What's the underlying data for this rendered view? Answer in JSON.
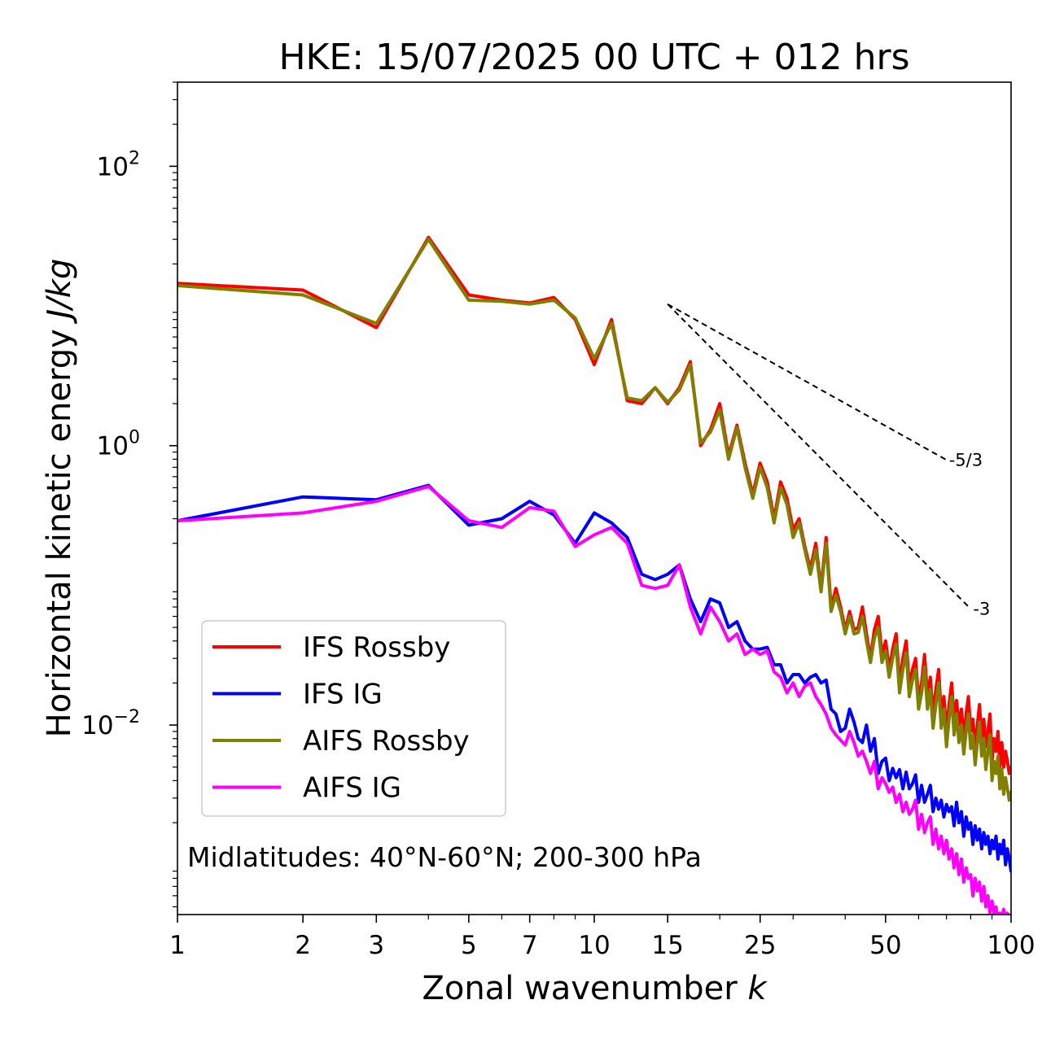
{
  "chart_data": {
    "type": "line",
    "title": "HKE: 15/07/2025 00 UTC + 012 hrs",
    "xlabel": "Zonal wavenumber",
    "xlabel_var": "k",
    "ylabel": "Horizontal kinetic energy",
    "ylabel_units": "J/kg",
    "xscale": "log",
    "yscale": "log",
    "xlim": [
      1,
      100
    ],
    "ylim": [
      0.00044,
      400
    ],
    "xticks": [
      {
        "value": 1,
        "label": "1"
      },
      {
        "value": 2,
        "label": "2"
      },
      {
        "value": 3,
        "label": "3"
      },
      {
        "value": 5,
        "label": "5"
      },
      {
        "value": 7,
        "label": "7"
      },
      {
        "value": 10,
        "label": "10"
      },
      {
        "value": 15,
        "label": "15"
      },
      {
        "value": 25,
        "label": "25"
      },
      {
        "value": 50,
        "label": "50"
      },
      {
        "value": 100,
        "label": "100"
      }
    ],
    "yticks": [
      {
        "exp": -2,
        "base": "10",
        "sup": "−2"
      },
      {
        "exp": 0,
        "base": "10",
        "sup": "0"
      },
      {
        "exp": 2,
        "base": "10",
        "sup": "2"
      }
    ],
    "annotation": "Midlatitudes: 40°N-60°N; 200-300 hPa",
    "legend_position": "lower-left",
    "colors": {
      "ifs_rossby": "#ff0000",
      "ifs_ig": "#0000ff",
      "aifs_rossby": "#808000",
      "aifs_ig": "#ff00ff",
      "reference": "#000000"
    },
    "reference_lines": [
      {
        "label": "-5/3",
        "slope": -1.6667,
        "x": [
          15,
          70
        ],
        "y_start": 10.3
      },
      {
        "label": "-3",
        "slope": -3,
        "x": [
          15,
          80
        ],
        "y_start": 10.3
      }
    ],
    "series": [
      {
        "name": "IFS Rossby",
        "color": "#ff0000",
        "x": [
          1,
          2,
          3,
          4,
          5,
          6,
          7,
          8,
          9,
          10,
          11,
          12,
          13,
          14,
          15,
          16,
          17,
          18,
          19,
          20,
          21,
          22,
          23,
          24,
          25,
          26,
          27,
          28,
          29,
          30,
          31,
          32,
          33,
          34,
          35,
          36,
          37,
          38,
          39,
          40,
          41,
          42,
          43,
          44,
          45,
          46,
          47,
          48,
          49,
          50,
          51,
          52,
          53,
          54,
          55,
          56,
          57,
          58,
          59,
          60,
          61,
          62,
          63,
          64,
          65,
          66,
          67,
          68,
          69,
          70,
          71,
          72,
          73,
          74,
          75,
          76,
          77,
          78,
          79,
          80,
          81,
          82,
          83,
          84,
          85,
          86,
          87,
          88,
          89,
          90,
          91,
          92,
          93,
          94,
          95,
          96,
          97,
          98,
          99,
          100
        ],
        "y": [
          14.5,
          13.0,
          7.0,
          31.0,
          12.0,
          11.0,
          10.5,
          11.5,
          8.0,
          3.8,
          8.0,
          2.1,
          2.0,
          2.6,
          2.0,
          2.6,
          4.0,
          1.0,
          1.3,
          2.0,
          0.85,
          1.4,
          0.75,
          0.45,
          0.75,
          0.55,
          0.3,
          0.55,
          0.42,
          0.25,
          0.3,
          0.19,
          0.13,
          0.2,
          0.095,
          0.22,
          0.07,
          0.095,
          0.07,
          0.048,
          0.065,
          0.048,
          0.05,
          0.07,
          0.045,
          0.03,
          0.048,
          0.06,
          0.032,
          0.04,
          0.025,
          0.035,
          0.045,
          0.02,
          0.03,
          0.04,
          0.019,
          0.025,
          0.03,
          0.015,
          0.02,
          0.032,
          0.016,
          0.022,
          0.012,
          0.018,
          0.025,
          0.012,
          0.016,
          0.009,
          0.014,
          0.02,
          0.011,
          0.015,
          0.01,
          0.013,
          0.008,
          0.012,
          0.016,
          0.009,
          0.011,
          0.007,
          0.01,
          0.014,
          0.008,
          0.011,
          0.007,
          0.009,
          0.012,
          0.0055,
          0.008,
          0.0065,
          0.009,
          0.005,
          0.0075,
          0.005,
          0.0065,
          0.0055,
          0.0045,
          0.005
        ]
      },
      {
        "name": "IFS IG",
        "color": "#0000ff",
        "x": [
          1,
          2,
          3,
          4,
          5,
          6,
          7,
          8,
          9,
          10,
          11,
          12,
          13,
          14,
          15,
          16,
          17,
          18,
          19,
          20,
          21,
          22,
          23,
          24,
          25,
          26,
          27,
          28,
          29,
          30,
          31,
          32,
          33,
          34,
          35,
          36,
          37,
          38,
          39,
          40,
          41,
          42,
          43,
          44,
          45,
          46,
          47,
          48,
          49,
          50,
          51,
          52,
          53,
          54,
          55,
          56,
          57,
          58,
          59,
          60,
          61,
          62,
          63,
          64,
          65,
          66,
          67,
          68,
          69,
          70,
          71,
          72,
          73,
          74,
          75,
          76,
          77,
          78,
          79,
          80,
          81,
          82,
          83,
          84,
          85,
          86,
          87,
          88,
          89,
          90,
          91,
          92,
          93,
          94,
          95,
          96,
          97,
          98,
          99,
          100
        ],
        "y": [
          0.29,
          0.43,
          0.41,
          0.52,
          0.27,
          0.3,
          0.4,
          0.32,
          0.2,
          0.33,
          0.28,
          0.22,
          0.12,
          0.11,
          0.12,
          0.14,
          0.08,
          0.055,
          0.08,
          0.075,
          0.05,
          0.055,
          0.04,
          0.035,
          0.035,
          0.036,
          0.027,
          0.027,
          0.02,
          0.023,
          0.023,
          0.02,
          0.022,
          0.023,
          0.02,
          0.021,
          0.013,
          0.012,
          0.009,
          0.0095,
          0.013,
          0.0105,
          0.008,
          0.0075,
          0.01,
          0.0065,
          0.008,
          0.0045,
          0.0055,
          0.0058,
          0.004,
          0.0049,
          0.0042,
          0.0048,
          0.0035,
          0.0046,
          0.0035,
          0.0038,
          0.0044,
          0.0028,
          0.0037,
          0.0028,
          0.0032,
          0.0037,
          0.0024,
          0.003,
          0.0025,
          0.0029,
          0.0022,
          0.0027,
          0.0024,
          0.0026,
          0.0019,
          0.0028,
          0.002,
          0.0024,
          0.0016,
          0.0022,
          0.0018,
          0.002,
          0.0014,
          0.0019,
          0.0015,
          0.0018,
          0.0013,
          0.0017,
          0.0014,
          0.0016,
          0.0012,
          0.0015,
          0.0013,
          0.0016,
          0.0011,
          0.0014,
          0.0012,
          0.0015,
          0.001,
          0.0013,
          0.0011,
          0.0009
        ]
      },
      {
        "name": "AIFS Rossby",
        "color": "#808000",
        "x": [
          1,
          2,
          3,
          4,
          5,
          6,
          7,
          8,
          9,
          10,
          11,
          12,
          13,
          14,
          15,
          16,
          17,
          18,
          19,
          20,
          21,
          22,
          23,
          24,
          25,
          26,
          27,
          28,
          29,
          30,
          31,
          32,
          33,
          34,
          35,
          36,
          37,
          38,
          39,
          40,
          41,
          42,
          43,
          44,
          45,
          46,
          47,
          48,
          49,
          50,
          51,
          52,
          53,
          54,
          55,
          56,
          57,
          58,
          59,
          60,
          61,
          62,
          63,
          64,
          65,
          66,
          67,
          68,
          69,
          70,
          71,
          72,
          73,
          74,
          75,
          76,
          77,
          78,
          79,
          80,
          81,
          82,
          83,
          84,
          85,
          86,
          87,
          88,
          89,
          90,
          91,
          92,
          93,
          94,
          95,
          96,
          97,
          98,
          99,
          100
        ],
        "y": [
          14.0,
          12.0,
          7.5,
          30.0,
          11.0,
          10.8,
          10.3,
          11.0,
          8.2,
          4.2,
          7.5,
          2.2,
          2.1,
          2.6,
          2.05,
          2.5,
          3.8,
          1.05,
          1.25,
          1.8,
          0.8,
          1.35,
          0.7,
          0.42,
          0.7,
          0.5,
          0.28,
          0.5,
          0.38,
          0.22,
          0.28,
          0.18,
          0.12,
          0.18,
          0.09,
          0.2,
          0.065,
          0.085,
          0.065,
          0.045,
          0.06,
          0.045,
          0.046,
          0.06,
          0.04,
          0.028,
          0.042,
          0.05,
          0.028,
          0.034,
          0.022,
          0.03,
          0.038,
          0.017,
          0.025,
          0.033,
          0.016,
          0.021,
          0.025,
          0.013,
          0.017,
          0.026,
          0.013,
          0.018,
          0.0095,
          0.014,
          0.02,
          0.0095,
          0.013,
          0.007,
          0.011,
          0.016,
          0.0085,
          0.012,
          0.0075,
          0.01,
          0.0062,
          0.009,
          0.012,
          0.0068,
          0.0085,
          0.0052,
          0.0075,
          0.0105,
          0.006,
          0.008,
          0.0048,
          0.0065,
          0.0085,
          0.004,
          0.0055,
          0.0045,
          0.006,
          0.0035,
          0.0048,
          0.0032,
          0.0042,
          0.0035,
          0.0029,
          0.0033
        ]
      },
      {
        "name": "AIFS IG",
        "color": "#ff00ff",
        "x": [
          1,
          2,
          3,
          4,
          5,
          6,
          7,
          8,
          9,
          10,
          11,
          12,
          13,
          14,
          15,
          16,
          17,
          18,
          19,
          20,
          21,
          22,
          23,
          24,
          25,
          26,
          27,
          28,
          29,
          30,
          31,
          32,
          33,
          34,
          35,
          36,
          37,
          38,
          39,
          40,
          41,
          42,
          43,
          44,
          45,
          46,
          47,
          48,
          49,
          50,
          51,
          52,
          53,
          54,
          55,
          56,
          57,
          58,
          59,
          60,
          61,
          62,
          63,
          64,
          65,
          66,
          67,
          68,
          69,
          70,
          71,
          72,
          73,
          74,
          75,
          76,
          77,
          78,
          79,
          80,
          81,
          82,
          83,
          84,
          85,
          86,
          87,
          88,
          89,
          90,
          91,
          92,
          93,
          94,
          95,
          96,
          97,
          98,
          99,
          100
        ],
        "y": [
          0.29,
          0.33,
          0.4,
          0.51,
          0.29,
          0.26,
          0.36,
          0.34,
          0.19,
          0.23,
          0.26,
          0.2,
          0.1,
          0.095,
          0.1,
          0.14,
          0.07,
          0.045,
          0.07,
          0.055,
          0.04,
          0.045,
          0.032,
          0.035,
          0.032,
          0.034,
          0.024,
          0.022,
          0.017,
          0.02,
          0.016,
          0.019,
          0.02,
          0.016,
          0.014,
          0.012,
          0.0095,
          0.0085,
          0.0078,
          0.0072,
          0.009,
          0.0075,
          0.006,
          0.0065,
          0.0055,
          0.0045,
          0.0055,
          0.0035,
          0.0042,
          0.0038,
          0.0033,
          0.0036,
          0.0028,
          0.0032,
          0.0024,
          0.0028,
          0.0023,
          0.0025,
          0.0029,
          0.0018,
          0.0023,
          0.0017,
          0.002,
          0.0022,
          0.0014,
          0.0018,
          0.0013,
          0.0016,
          0.0012,
          0.0015,
          0.0011,
          0.0013,
          0.00095,
          0.0012,
          0.00085,
          0.0011,
          0.00075,
          0.00095,
          0.0008,
          0.00085,
          0.0006,
          0.0008,
          0.00065,
          0.00075,
          0.00055,
          0.0007,
          0.0005,
          0.0006,
          0.00045,
          0.00055,
          0.00045,
          0.0005,
          0.0004,
          0.00045,
          0.00042,
          0.00048,
          0.00038,
          0.00045,
          0.0004,
          0.00042
        ]
      }
    ]
  }
}
